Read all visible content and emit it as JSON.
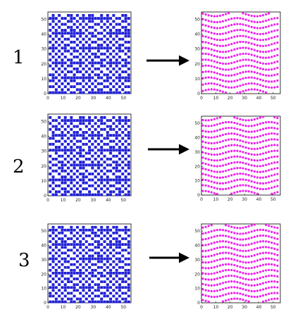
{
  "rows": [
    {
      "label": "1"
    },
    {
      "label": "2"
    },
    {
      "label": "3"
    }
  ],
  "axes": {
    "xlim": [
      0,
      55
    ],
    "ylim": [
      0,
      55
    ],
    "xticks": [
      0,
      10,
      20,
      30,
      40,
      50
    ],
    "yticks": [
      0,
      10,
      20,
      30,
      40,
      50
    ]
  }
}
